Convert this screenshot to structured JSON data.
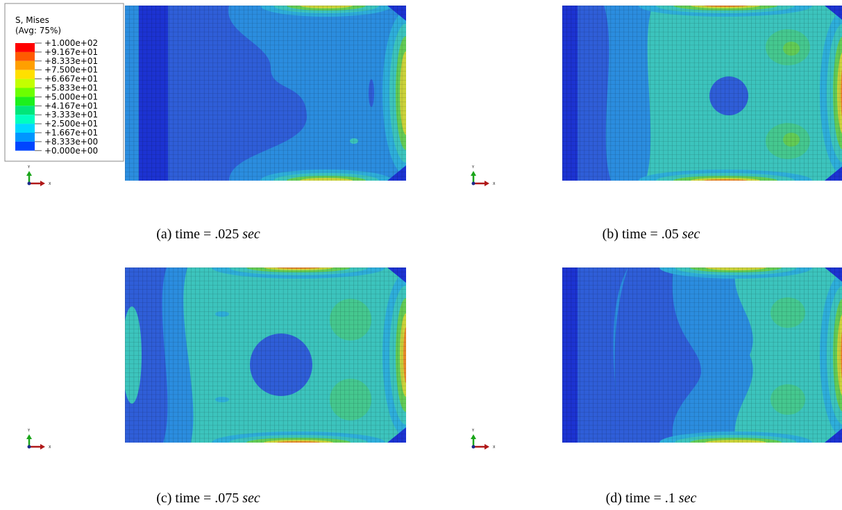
{
  "legend": {
    "title": "S, Mises",
    "subtitle": "(Avg: 75%)",
    "labels": [
      "+1.000e+02",
      "+9.167e+01",
      "+8.333e+01",
      "+7.500e+01",
      "+6.667e+01",
      "+5.833e+01",
      "+5.000e+01",
      "+4.167e+01",
      "+3.333e+01",
      "+2.500e+01",
      "+1.667e+01",
      "+8.333e+00",
      "+0.000e+00"
    ]
  },
  "panels": [
    {
      "label": "(a) time = .025",
      "unit": "sec",
      "axis_y": "Y",
      "axis_x": "X"
    },
    {
      "label": "(b) time = .05",
      "unit": "sec",
      "axis_y": "Y",
      "axis_x": "X"
    },
    {
      "label": "(c) time = .075",
      "unit": "sec",
      "axis_y": "Y",
      "axis_x": "X"
    },
    {
      "label": "(d) time = .1",
      "unit": "sec",
      "axis_y": "Y",
      "axis_x": "X"
    }
  ]
}
